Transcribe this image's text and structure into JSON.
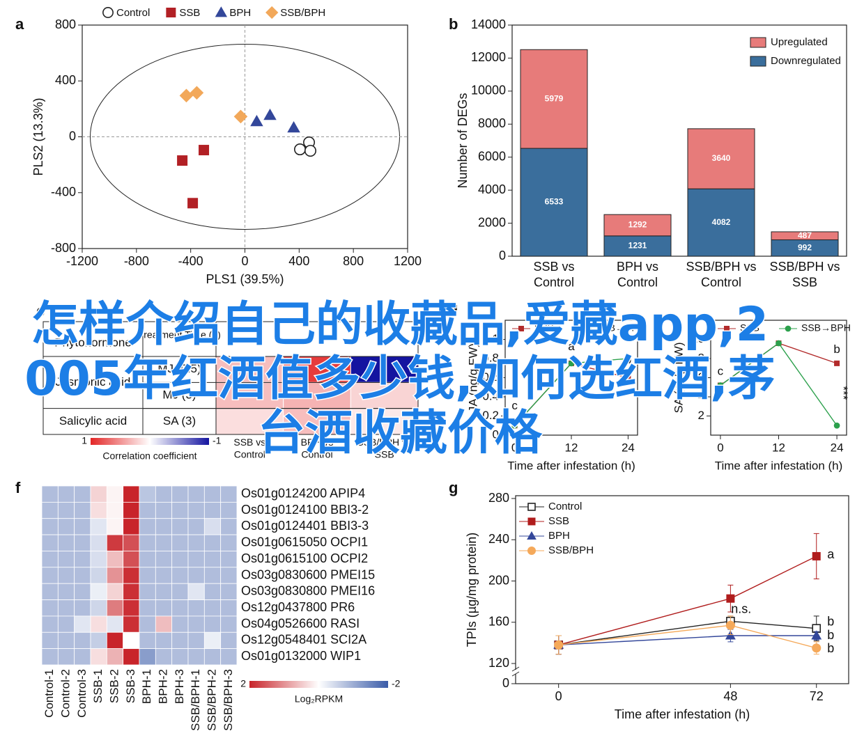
{
  "overlay_title": "怎样介绍自己的收藏品,爱藏app,2005年红酒值多少钱,如何选红酒,茅台酒收藏价格",
  "chart_data": [
    {
      "panel": "a",
      "type": "scatter",
      "xlabel": "PLS1 (39.5%)",
      "ylabel": "PLS2 (13.3%)",
      "xlim": [
        -1200,
        1200
      ],
      "ylim": [
        -800,
        800
      ],
      "xticks": [
        -1200,
        -800,
        -400,
        0,
        400,
        800,
        1200
      ],
      "yticks": [
        -800,
        -400,
        0,
        400,
        800
      ],
      "legend": "top",
      "series": [
        {
          "name": "Control",
          "color": "#222222",
          "marker": "circle-open",
          "x": [
            473,
            406,
            483
          ],
          "values": [
            -40,
            -90,
            -100
          ]
        },
        {
          "name": "SSB",
          "color": "#b22025",
          "marker": "square",
          "x": [
            -462,
            -303,
            -385
          ],
          "values": [
            -170,
            -95,
            -475
          ]
        },
        {
          "name": "BPH",
          "color": "#33479a",
          "marker": "triangle",
          "x": [
            87,
            185,
            360
          ],
          "values": [
            110,
            155,
            65
          ]
        },
        {
          "name": "SSB/BPH",
          "color": "#f2a85a",
          "marker": "diamond",
          "x": [
            -432,
            -355,
            -31
          ],
          "values": [
            295,
            315,
            145
          ]
        }
      ]
    },
    {
      "panel": "b",
      "type": "stacked-bar",
      "ylabel": "Number of DEGs",
      "categories": [
        "SSB vs Control",
        "BPH vs Control",
        "SSB/BPH vs Control",
        "SSB/BPH vs SSB"
      ],
      "ylim": [
        0,
        14000
      ],
      "yticks": [
        0,
        2000,
        4000,
        6000,
        8000,
        10000,
        12000,
        14000
      ],
      "legend": "upper right",
      "series": [
        {
          "name": "Downregulated",
          "color": "#3a6e9c",
          "values": [
            6533,
            1231,
            4082,
            992
          ]
        },
        {
          "name": "Upregulated",
          "color": "#e77b7a",
          "values": [
            5979,
            1292,
            3640,
            487
          ]
        }
      ]
    },
    {
      "panel": "c",
      "type": "table-heatmap",
      "header": [
        "Phytohormone",
        "Treatment Time (h)"
      ],
      "groups": [
        {
          "name": "Jasmonic acid",
          "rows": [
            "MJ (0.5)",
            "MJ (3)"
          ]
        },
        {
          "name": "Salicylic acid",
          "rows": [
            "SA (3)"
          ]
        }
      ],
      "columns": [
        "SSB vs Control",
        "BPH vs Control",
        "SSB/BPH vs SSB"
      ],
      "values": [
        [
          0.3,
          0.9,
          -1.0
        ],
        [
          0.3,
          0.35,
          0.2
        ],
        [
          0.15,
          0.3,
          0.1
        ]
      ],
      "clim": [
        -1,
        1
      ],
      "colors": [
        "#1414a0",
        "#ffffff",
        "#e32626"
      ],
      "cticks": [
        1,
        -1
      ],
      "colorbar_label": "Correlation coefficient"
    },
    {
      "panel": "d",
      "type": "line",
      "ylabel": "JA (ng/g FW)",
      "xlabel": "Time after infestation (h)",
      "x": [
        0,
        12,
        24
      ],
      "xlim": [
        -2,
        26
      ],
      "xticks": [
        0,
        12,
        24
      ],
      "ylim": [
        0,
        1.2
      ],
      "yticks": [
        0,
        0.2,
        0.4,
        0.6,
        0.8,
        1
      ],
      "legend": "top",
      "series": [
        {
          "name": "SSB",
          "color": "#b22b2b",
          "marker": "square",
          "values": [
            0.1,
            0.75,
            0.6
          ]
        },
        {
          "name": "SSB→BPH",
          "color": "#2ca04c",
          "marker": "circle",
          "values": [
            0.1,
            0.75,
            0.8
          ]
        }
      ],
      "annotations": [
        {
          "text": "c",
          "x": 0,
          "y": 0.3
        },
        {
          "text": "a",
          "x": 12,
          "y": 0.92
        },
        {
          "text": "b",
          "x": 24,
          "y": 0.78
        }
      ]
    },
    {
      "type": "line",
      "ylabel": "SA (ng/g FW)",
      "xlabel": "Time after infestation (h)",
      "x": [
        0,
        12,
        24
      ],
      "xlim": [
        -2,
        26
      ],
      "xticks": [
        0,
        12,
        24
      ],
      "ylim": [
        0,
        12
      ],
      "yticks": [
        2,
        4,
        6,
        8,
        10
      ],
      "legend": "top",
      "series": [
        {
          "name": "SSB",
          "color": "#b22b2b",
          "marker": "square",
          "values": [
            5.2,
            9.6,
            7.5
          ]
        },
        {
          "name": "SSB→BPH",
          "color": "#2ca04c",
          "marker": "circle",
          "values": [
            5.2,
            9.6,
            1.0
          ]
        }
      ],
      "annotations": [
        {
          "text": "c",
          "x": 0,
          "y": 6.6
        },
        {
          "text": "b",
          "x": 24,
          "y": 8.9
        },
        {
          "text": "***",
          "x": 25.2,
          "y": 4.4,
          "rotate": 90
        }
      ]
    },
    {
      "panel": "f",
      "type": "heatmap",
      "columns": [
        "Control-1",
        "Control-2",
        "Control-3",
        "SSB-1",
        "SSB-2",
        "SSB-3",
        "BPH-1",
        "BPH-2",
        "BPH-3",
        "SSB/BPH-1",
        "SSB/BPH-2",
        "SSB/BPH-3"
      ],
      "rows": [
        "Os01g0124200 APIP4",
        "Os01g0124100 BBI3-2",
        "Os01g0124401 BBI3-3",
        "Os01g0615050 OCPI1",
        "Os01g0615100 OCPI2",
        "Os03g0830600 PMEI15",
        "Os03g0830800 PMEI16",
        "Os12g0437800 PR6",
        "Os04g0526600 RASI",
        "Os12g0548401 SCI2A",
        "Os01g0132000 WIP1"
      ],
      "values": [
        [
          -0.8,
          -0.8,
          -0.8,
          0.4,
          0.1,
          2,
          -0.7,
          -0.8,
          -0.8,
          -0.8,
          -0.8,
          -0.8
        ],
        [
          -0.8,
          -0.8,
          -0.8,
          0.3,
          0.1,
          2,
          -0.8,
          -0.8,
          -0.8,
          -0.8,
          -0.8,
          -0.8
        ],
        [
          -0.8,
          -0.8,
          -0.8,
          -0.3,
          0.1,
          2,
          -0.8,
          -0.8,
          -0.8,
          -0.8,
          -0.4,
          -0.8
        ],
        [
          -0.8,
          -0.8,
          -0.8,
          -0.4,
          1.8,
          1.6,
          -0.8,
          -0.8,
          -0.8,
          -0.8,
          -0.8,
          -0.8
        ],
        [
          -0.8,
          -0.8,
          -0.8,
          -0.4,
          0.6,
          1.6,
          -0.8,
          -0.8,
          -0.8,
          -0.8,
          -0.8,
          -0.8
        ],
        [
          -0.8,
          -0.8,
          -0.8,
          -0.5,
          1.0,
          1.9,
          -0.8,
          -0.8,
          -0.8,
          -0.8,
          -0.8,
          -0.8
        ],
        [
          -0.8,
          -0.8,
          -0.8,
          -0.2,
          0.4,
          1.9,
          -0.8,
          -0.8,
          -0.8,
          -0.3,
          -0.8,
          -0.8
        ],
        [
          -0.8,
          -0.8,
          -0.8,
          -0.5,
          1.2,
          1.9,
          -0.8,
          -0.8,
          -0.8,
          -0.8,
          -0.8,
          -0.8
        ],
        [
          -0.8,
          -0.8,
          -0.3,
          0.3,
          -0.3,
          1.9,
          -0.8,
          0.6,
          -0.8,
          -0.8,
          -0.8,
          -0.8
        ],
        [
          -0.8,
          -0.8,
          -0.8,
          -0.6,
          2,
          0,
          -0.8,
          -0.8,
          -0.8,
          -0.8,
          -0.2,
          -0.8
        ],
        [
          -0.8,
          -0.8,
          -0.8,
          0.3,
          0.7,
          2,
          -1.2,
          -0.8,
          -0.8,
          -0.8,
          -0.8,
          -0.8
        ]
      ],
      "clim": [
        -2,
        2
      ],
      "colors": [
        "#3a5ba8",
        "#ffffff",
        "#c8242a"
      ],
      "cticks": [
        2,
        -2
      ],
      "colorbar_label": "Log₂RPKM"
    },
    {
      "panel": "g",
      "type": "line",
      "ylabel": "TPIs (µg/mg protein)",
      "xlabel": "Time after infestation (h)",
      "x": [
        0,
        48,
        72
      ],
      "xlim": [
        -12,
        81
      ],
      "xticks": [
        0,
        48,
        72
      ],
      "ylim": [
        120,
        280
      ],
      "yticks": [
        0,
        120,
        160,
        200,
        240,
        280
      ],
      "axis_break": true,
      "legend": "upper left",
      "series": [
        {
          "name": "Control",
          "color": "#222222",
          "marker": "square-open",
          "values": [
            138,
            161,
            154
          ],
          "errors": [
            9,
            5,
            12
          ]
        },
        {
          "name": "SSB",
          "color": "#b01c1c",
          "marker": "square",
          "values": [
            138,
            183,
            224
          ],
          "errors": [
            9,
            13,
            22
          ]
        },
        {
          "name": "BPH",
          "color": "#33479a",
          "marker": "triangle",
          "values": [
            138,
            147,
            147
          ],
          "errors": [
            9,
            6,
            4
          ]
        },
        {
          "name": "SSB/BPH",
          "color": "#f5a95a",
          "marker": "circle",
          "values": [
            138,
            157,
            135
          ],
          "errors": [
            9,
            9,
            6
          ]
        }
      ],
      "annotations": [
        {
          "text": "n.s.",
          "x": 51,
          "y": 172
        },
        {
          "text": "a",
          "x": 76,
          "y": 225
        },
        {
          "text": "b",
          "x": 76,
          "y": 160
        },
        {
          "text": "b",
          "x": 76,
          "y": 147
        },
        {
          "text": "b",
          "x": 76,
          "y": 134
        }
      ]
    }
  ]
}
